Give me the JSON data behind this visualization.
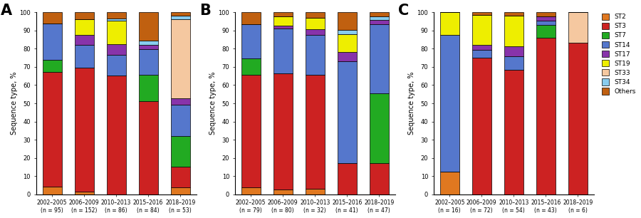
{
  "st_labels": [
    "ST2",
    "ST3",
    "ST7",
    "ST14",
    "ST17",
    "ST19",
    "ST33",
    "ST34",
    "Others"
  ],
  "st_colors": [
    "#E07820",
    "#CC2222",
    "#22AA22",
    "#5577CC",
    "#8833AA",
    "#EEEE00",
    "#F5C8A0",
    "#88CCEE",
    "#C06010"
  ],
  "panel_A": {
    "title": "A",
    "x_labels": [
      "2002–2005\n(n = 95)",
      "2006–2009\n(n = 152)",
      "2010–2013\n(n = 86)",
      "2015–2016\n(n = 84)",
      "2018–2019\n(n = 53)"
    ],
    "data": {
      "ST2": [
        4.2,
        1.3,
        0.0,
        0.0,
        3.8
      ],
      "ST3": [
        63.2,
        68.4,
        65.1,
        51.2,
        11.3
      ],
      "ST7": [
        6.3,
        0.0,
        0.0,
        14.3,
        17.0
      ],
      "ST14": [
        20.0,
        12.5,
        11.6,
        14.3,
        17.0
      ],
      "ST17": [
        0.0,
        5.3,
        5.8,
        2.4,
        3.8
      ],
      "ST19": [
        0.0,
        8.6,
        12.8,
        0.0,
        0.0
      ],
      "ST33": [
        0.0,
        0.0,
        0.0,
        0.0,
        43.4
      ],
      "ST34": [
        0.0,
        0.0,
        1.2,
        2.4,
        1.9
      ],
      "Others": [
        6.3,
        3.9,
        3.5,
        15.4,
        1.8
      ]
    }
  },
  "panel_B": {
    "title": "B",
    "x_labels": [
      "2002–2005\n(n = 79)",
      "2006–2009\n(n = 80)",
      "2010–2013\n(n = 32)",
      "2015–2016\n(n = 41)",
      "2018–2019\n(n = 47)"
    ],
    "data": {
      "ST2": [
        3.8,
        2.5,
        3.1,
        0.0,
        0.0
      ],
      "ST3": [
        62.0,
        63.8,
        62.5,
        17.1,
        17.0
      ],
      "ST7": [
        8.9,
        0.0,
        0.0,
        0.0,
        38.3
      ],
      "ST14": [
        18.9,
        25.0,
        21.9,
        56.1,
        38.3
      ],
      "ST17": [
        0.0,
        1.3,
        3.1,
        4.9,
        2.1
      ],
      "ST19": [
        0.0,
        5.0,
        6.3,
        9.8,
        0.0
      ],
      "ST33": [
        0.0,
        0.0,
        0.0,
        0.0,
        0.0
      ],
      "ST34": [
        0.0,
        0.0,
        0.0,
        2.4,
        2.1
      ],
      "Others": [
        6.4,
        2.4,
        3.1,
        9.7,
        2.2
      ]
    }
  },
  "panel_C": {
    "title": "C",
    "x_labels": [
      "2002–2005\n(n = 16)",
      "2006–2009\n(n = 72)",
      "2010–2013\n(n = 54)",
      "2015–2016\n(n = 43)",
      "2018–2019\n(n = 6)"
    ],
    "data": {
      "ST2": [
        12.5,
        0.0,
        0.0,
        0.0,
        0.0
      ],
      "ST3": [
        0.0,
        75.0,
        68.5,
        86.0,
        83.3
      ],
      "ST7": [
        0.0,
        0.0,
        0.0,
        7.0,
        0.0
      ],
      "ST14": [
        75.0,
        4.2,
        7.4,
        2.3,
        0.0
      ],
      "ST17": [
        0.0,
        2.8,
        5.6,
        2.3,
        0.0
      ],
      "ST19": [
        12.5,
        16.7,
        16.7,
        0.0,
        0.0
      ],
      "ST33": [
        0.0,
        0.0,
        0.0,
        0.0,
        16.7
      ],
      "ST34": [
        0.0,
        0.0,
        0.0,
        0.0,
        0.0
      ],
      "Others": [
        0.0,
        1.3,
        1.8,
        2.4,
        0.0
      ]
    }
  }
}
